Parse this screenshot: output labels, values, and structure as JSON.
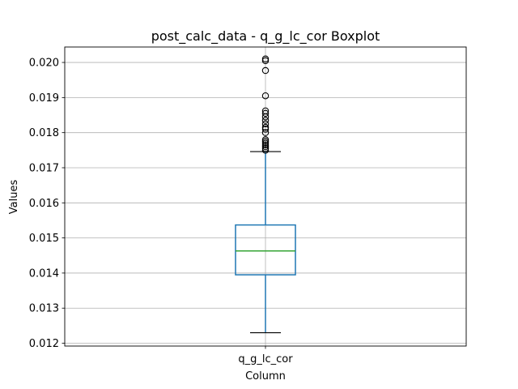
{
  "chart_data": {
    "type": "boxplot",
    "title": "post_calc_data - q_g_lc_cor Boxplot",
    "xlabel": "Column",
    "ylabel": "Values",
    "categories": [
      "q_g_lc_cor"
    ],
    "ylim": [
      0.01192,
      0.02044
    ],
    "yticks": [
      0.012,
      0.013,
      0.014,
      0.015,
      0.016,
      0.017,
      0.018,
      0.019,
      0.02
    ],
    "ytick_labels": [
      "0.012",
      "0.013",
      "0.014",
      "0.015",
      "0.016",
      "0.017",
      "0.018",
      "0.019",
      "0.020"
    ],
    "grid": true,
    "boxes": [
      {
        "category": "q_g_lc_cor",
        "whisker_low": 0.0123,
        "q1": 0.01395,
        "median": 0.01463,
        "q3": 0.01537,
        "whisker_high": 0.01746,
        "outliers": [
          0.0175,
          0.01755,
          0.0176,
          0.01765,
          0.0177,
          0.01775,
          0.0178,
          0.018,
          0.0181,
          0.01815,
          0.01825,
          0.01835,
          0.01845,
          0.01855,
          0.01862,
          0.01905,
          0.01977,
          0.02005,
          0.0201
        ]
      }
    ],
    "colors": {
      "box": "#1f77b4",
      "median": "#2ca02c",
      "whisker_cap": "#000000",
      "grid": "#b0b0b0",
      "axes": "#000000",
      "outlier": "#000000"
    }
  }
}
